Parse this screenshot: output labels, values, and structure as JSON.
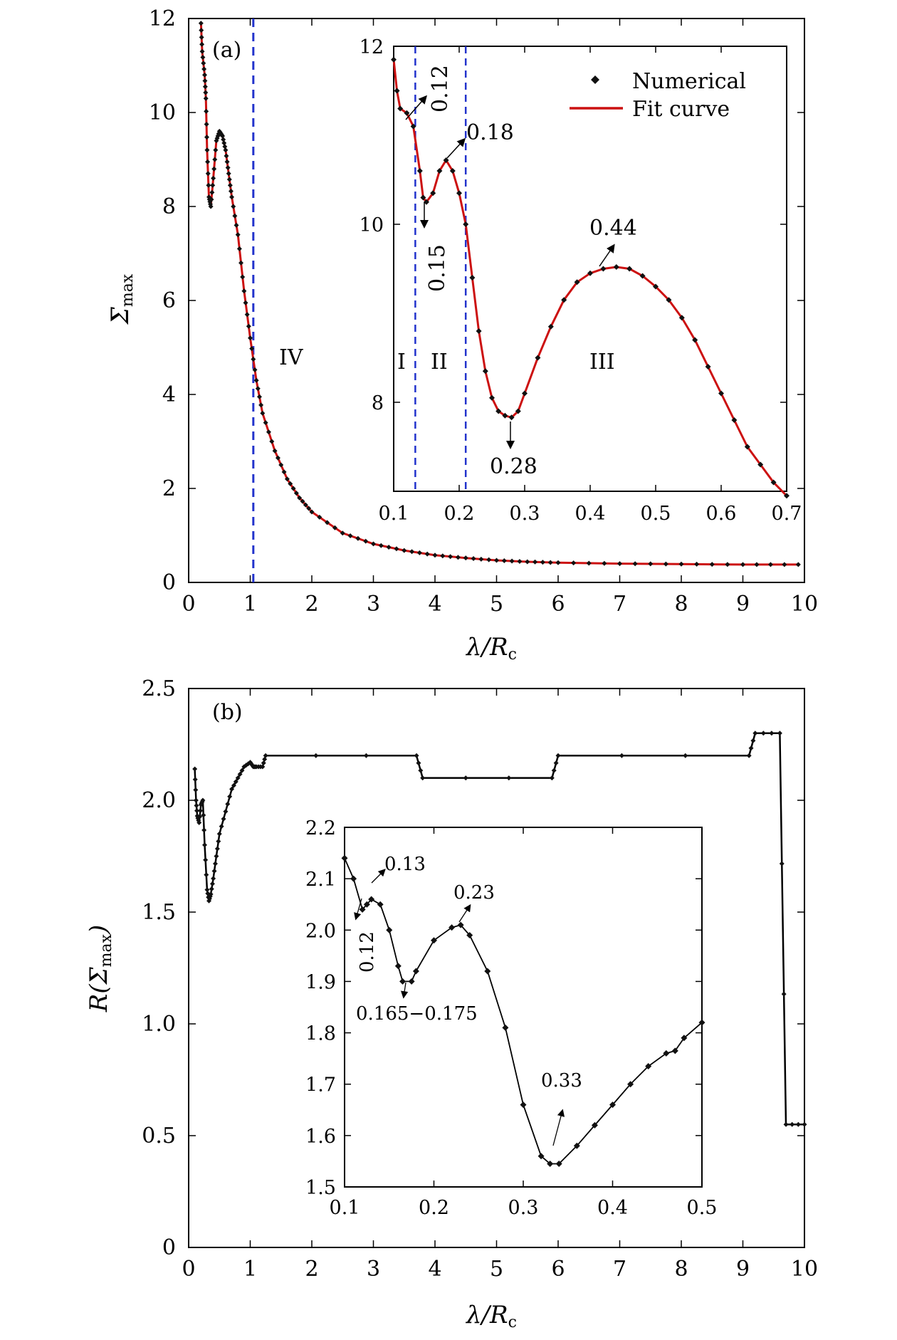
{
  "colors": {
    "fit": "#cc1111",
    "marker": "#111111",
    "divider": "#2233cc",
    "axis": "#000000"
  },
  "chart_data": [
    {
      "id": "a",
      "panel_label": "(a)",
      "type": "scatter+line",
      "xlabel": "λ/R",
      "xlabel_sub": "c",
      "ylabel": "Σ",
      "ylabel_sub": "max",
      "xlim": [
        0,
        10
      ],
      "ylim": [
        0,
        12
      ],
      "xticks": [
        "0",
        "1",
        "2",
        "3",
        "4",
        "5",
        "6",
        "7",
        "8",
        "9",
        "10"
      ],
      "yticks": [
        "0",
        "2",
        "4",
        "6",
        "8",
        "10",
        "12"
      ],
      "region_label": "IV",
      "divider_x": 1.05,
      "legend": {
        "markers": "Numerical",
        "line": "Fit curve",
        "placement": "inset-top-right"
      },
      "series": [
        {
          "name": "Numerical",
          "curve": [
            [
              0.2,
              11.9
            ],
            [
              0.22,
              11.3
            ],
            [
              0.26,
              10.8
            ],
            [
              0.28,
              10.3
            ],
            [
              0.3,
              9.2
            ],
            [
              0.33,
              8.2
            ],
            [
              0.36,
              8.0
            ],
            [
              0.4,
              8.6
            ],
            [
              0.45,
              9.4
            ],
            [
              0.5,
              9.6
            ],
            [
              0.55,
              9.5
            ],
            [
              0.6,
              9.2
            ],
            [
              0.65,
              8.7
            ],
            [
              0.7,
              8.2
            ],
            [
              0.8,
              7.4
            ],
            [
              0.9,
              6.2
            ],
            [
              1.0,
              5.2
            ],
            [
              1.1,
              4.3
            ],
            [
              1.2,
              3.6
            ],
            [
              1.4,
              2.8
            ],
            [
              1.6,
              2.2
            ],
            [
              1.8,
              1.8
            ],
            [
              2.0,
              1.5
            ],
            [
              2.5,
              1.05
            ],
            [
              3.0,
              0.82
            ],
            [
              3.5,
              0.68
            ],
            [
              4.0,
              0.58
            ],
            [
              4.5,
              0.52
            ],
            [
              5.0,
              0.47
            ],
            [
              5.5,
              0.44
            ],
            [
              6.0,
              0.42
            ],
            [
              7.0,
              0.4
            ],
            [
              8.0,
              0.39
            ],
            [
              9.0,
              0.38
            ],
            [
              9.9,
              0.38
            ]
          ]
        }
      ],
      "inset": {
        "xlim": [
          0.1,
          0.7
        ],
        "ylim": [
          7,
          12
        ],
        "xticks": [
          "0.1",
          "0.2",
          "0.3",
          "0.4",
          "0.5",
          "0.6",
          "0.7"
        ],
        "yticks": [
          "8",
          "10",
          "12"
        ],
        "dividers_x": [
          0.133,
          0.21
        ],
        "regions": [
          "I",
          "II",
          "III"
        ],
        "annotations": [
          "0.12",
          "0.18",
          "0.15",
          "0.28",
          "0.44"
        ],
        "curve": [
          [
            0.1,
            11.85
          ],
          [
            0.105,
            11.5
          ],
          [
            0.11,
            11.3
          ],
          [
            0.12,
            11.25
          ],
          [
            0.13,
            11.1
          ],
          [
            0.14,
            10.6
          ],
          [
            0.145,
            10.3
          ],
          [
            0.15,
            10.25
          ],
          [
            0.16,
            10.35
          ],
          [
            0.17,
            10.6
          ],
          [
            0.18,
            10.72
          ],
          [
            0.19,
            10.6
          ],
          [
            0.2,
            10.35
          ],
          [
            0.21,
            10.0
          ],
          [
            0.22,
            9.4
          ],
          [
            0.23,
            8.8
          ],
          [
            0.24,
            8.35
          ],
          [
            0.25,
            8.05
          ],
          [
            0.26,
            7.9
          ],
          [
            0.27,
            7.85
          ],
          [
            0.28,
            7.83
          ],
          [
            0.29,
            7.9
          ],
          [
            0.3,
            8.1
          ],
          [
            0.32,
            8.5
          ],
          [
            0.34,
            8.85
          ],
          [
            0.36,
            9.15
          ],
          [
            0.38,
            9.35
          ],
          [
            0.4,
            9.45
          ],
          [
            0.42,
            9.5
          ],
          [
            0.44,
            9.52
          ],
          [
            0.46,
            9.5
          ],
          [
            0.48,
            9.42
          ],
          [
            0.5,
            9.3
          ],
          [
            0.52,
            9.15
          ],
          [
            0.54,
            8.95
          ],
          [
            0.56,
            8.7
          ],
          [
            0.58,
            8.4
          ],
          [
            0.6,
            8.1
          ],
          [
            0.62,
            7.8
          ],
          [
            0.64,
            7.5
          ],
          [
            0.66,
            7.3
          ],
          [
            0.68,
            7.1
          ],
          [
            0.7,
            6.95
          ]
        ]
      }
    },
    {
      "id": "b",
      "panel_label": "(b)",
      "type": "line+markers",
      "xlabel": "λ/R",
      "xlabel_sub": "c",
      "ylabel_pre": "R(Σ",
      "ylabel_sub": "max",
      "ylabel_post": ")",
      "xlim": [
        0,
        10
      ],
      "ylim": [
        0,
        2.5
      ],
      "xticks": [
        "0",
        "1",
        "2",
        "3",
        "4",
        "5",
        "6",
        "7",
        "8",
        "9",
        "10"
      ],
      "yticks": [
        "0",
        "0.5",
        "1.0",
        "1.5",
        "2.0",
        "2.5"
      ],
      "series": [
        {
          "name": "",
          "curve": [
            [
              0.1,
              2.14
            ],
            [
              0.12,
              2.0
            ],
            [
              0.14,
              1.93
            ],
            [
              0.17,
              1.9
            ],
            [
              0.2,
              1.98
            ],
            [
              0.23,
              2.0
            ],
            [
              0.26,
              1.8
            ],
            [
              0.3,
              1.6
            ],
            [
              0.33,
              1.55
            ],
            [
              0.36,
              1.58
            ],
            [
              0.4,
              1.65
            ],
            [
              0.45,
              1.75
            ],
            [
              0.5,
              1.85
            ],
            [
              0.6,
              1.95
            ],
            [
              0.7,
              2.05
            ],
            [
              0.8,
              2.1
            ],
            [
              0.9,
              2.15
            ],
            [
              1.0,
              2.17
            ],
            [
              1.05,
              2.15
            ],
            [
              1.1,
              2.15
            ],
            [
              1.2,
              2.15
            ],
            [
              1.25,
              2.2
            ],
            [
              3.7,
              2.2
            ],
            [
              3.8,
              2.1
            ],
            [
              5.9,
              2.1
            ],
            [
              6.0,
              2.2
            ],
            [
              9.1,
              2.2
            ],
            [
              9.2,
              2.3
            ],
            [
              9.6,
              2.3
            ],
            [
              9.7,
              0.55
            ],
            [
              10,
              0.55
            ]
          ]
        }
      ],
      "inset": {
        "xlim": [
          0.1,
          0.5
        ],
        "ylim": [
          1.5,
          2.2
        ],
        "xticks": [
          "0.1",
          "0.2",
          "0.3",
          "0.4",
          "0.5"
        ],
        "yticks": [
          "1.5",
          "1.6",
          "1.7",
          "1.8",
          "1.9",
          "2.0",
          "2.1",
          "2.2"
        ],
        "annotations": [
          "0.13",
          "0.23",
          "0.12",
          "0.165−0.175",
          "0.33"
        ],
        "curve": [
          [
            0.1,
            2.14
          ],
          [
            0.11,
            2.1
          ],
          [
            0.12,
            2.04
          ],
          [
            0.125,
            2.05
          ],
          [
            0.13,
            2.06
          ],
          [
            0.14,
            2.05
          ],
          [
            0.15,
            2.0
          ],
          [
            0.16,
            1.93
          ],
          [
            0.165,
            1.9
          ],
          [
            0.175,
            1.9
          ],
          [
            0.18,
            1.92
          ],
          [
            0.2,
            1.98
          ],
          [
            0.22,
            2.005
          ],
          [
            0.23,
            2.01
          ],
          [
            0.24,
            1.99
          ],
          [
            0.26,
            1.92
          ],
          [
            0.28,
            1.81
          ],
          [
            0.3,
            1.66
          ],
          [
            0.32,
            1.56
          ],
          [
            0.33,
            1.545
          ],
          [
            0.34,
            1.545
          ],
          [
            0.36,
            1.58
          ],
          [
            0.38,
            1.62
          ],
          [
            0.4,
            1.66
          ],
          [
            0.42,
            1.7
          ],
          [
            0.44,
            1.735
          ],
          [
            0.46,
            1.76
          ],
          [
            0.47,
            1.765
          ],
          [
            0.48,
            1.79
          ],
          [
            0.5,
            1.82
          ]
        ]
      }
    }
  ]
}
